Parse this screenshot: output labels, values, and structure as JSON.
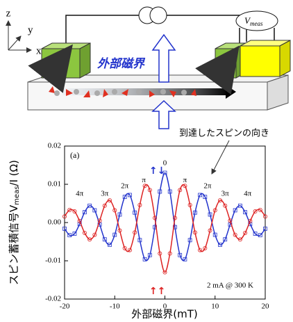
{
  "schematic": {
    "axis_z": "z",
    "axis_y": "y",
    "axis_x": "x",
    "v_meas": "V",
    "v_meas_sub": "meas",
    "field_label": "外部磁界"
  },
  "chart_data": {
    "type": "line",
    "panel_label": "(a)",
    "annotation": "到達したスピンの向き",
    "ylabel": "スピン蓄積信号V",
    "ylabel_sub": "meas",
    "ylabel_tail": "/I (Ω)",
    "xlabel": "外部磁界(mT)",
    "phase_labels": [
      "4π",
      "3π",
      "2π",
      "π",
      "0",
      "π",
      "2π",
      "3π",
      "4π"
    ],
    "conditions": "2 mA  @ 300 K",
    "x": [
      -20,
      -19,
      -18,
      -17,
      -16,
      -15,
      -14,
      -13,
      -12,
      -11,
      -10,
      -9,
      -8,
      -7,
      -6,
      -5,
      -4,
      -3,
      -2,
      -1,
      0,
      1,
      2,
      3,
      4,
      5,
      6,
      7,
      8,
      9,
      10,
      11,
      12,
      13,
      14,
      15,
      16,
      17,
      18,
      19,
      20
    ],
    "series": [
      {
        "name": "↑↓",
        "color": "#2233cc",
        "marker": "square",
        "values": [
          -0.0016,
          -0.0033,
          -0.0029,
          -0.0004,
          0.0027,
          0.0044,
          0.0032,
          -0.0005,
          -0.0044,
          -0.0058,
          -0.0032,
          0.0021,
          0.0067,
          0.0072,
          0.0026,
          -0.0046,
          -0.0096,
          -0.0085,
          -0.0012,
          0.0081,
          0.013,
          0.0081,
          -0.0012,
          -0.0085,
          -0.0096,
          -0.0046,
          0.0026,
          0.0072,
          0.0067,
          0.0021,
          -0.0032,
          -0.0058,
          -0.0044,
          -0.0005,
          0.0032,
          0.0044,
          0.0027,
          -0.0004,
          -0.0029,
          -0.0033,
          -0.0016
        ]
      },
      {
        "name": "↑↑",
        "color": "#dd2222",
        "marker": "circle",
        "values": [
          0.0016,
          0.0033,
          0.0029,
          0.0004,
          -0.0027,
          -0.0044,
          -0.0032,
          0.0005,
          0.0044,
          0.0058,
          0.0032,
          -0.0021,
          -0.0067,
          -0.0072,
          -0.0026,
          0.0046,
          0.0096,
          0.0085,
          0.0012,
          -0.0081,
          -0.013,
          -0.0081,
          0.0012,
          0.0085,
          0.0096,
          0.0046,
          -0.0026,
          -0.0072,
          -0.0067,
          -0.0021,
          0.0032,
          0.0058,
          0.0044,
          0.0005,
          -0.0032,
          -0.0044,
          -0.0027,
          0.0004,
          0.0029,
          0.0033,
          0.0016
        ]
      }
    ],
    "xlim": [
      -20,
      20
    ],
    "xticks": [
      -20,
      -10,
      0,
      10,
      20
    ],
    "ylim": [
      -0.02,
      0.02
    ],
    "yticks": [
      -0.02,
      -0.01,
      {
        "value": 0,
        "label": "0.00"
      },
      0.01,
      0.02
    ]
  }
}
